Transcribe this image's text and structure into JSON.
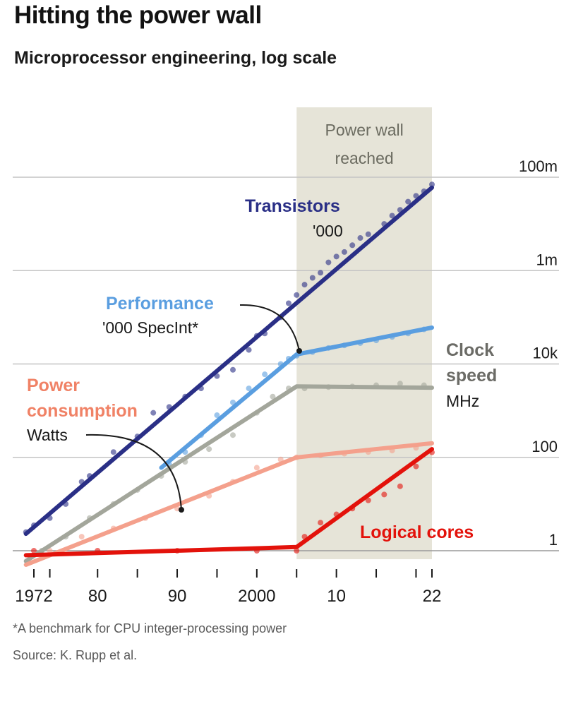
{
  "header": {
    "title": "Hitting the power wall",
    "subtitle": "Microprocessor engineering, log scale"
  },
  "footer": {
    "footnote": "*A benchmark for CPU integer-processing power",
    "source": "Source: K. Rupp et al."
  },
  "colors": {
    "transistors": "#2a2f86",
    "performance": "#5a9ee0",
    "clock": "#a3a69b",
    "power": "#f4a08c",
    "cores": "#e3120b",
    "shade": "#e6e4d8",
    "grid": "#c4c4c4"
  },
  "chart_data": {
    "type": "line",
    "title": "Hitting the power wall",
    "subtitle": "Microprocessor engineering, log scale",
    "y_scale": "log",
    "ylim": [
      0.3,
      500000000
    ],
    "xlim": [
      1971,
      2023
    ],
    "x_ticks": [
      1972,
      1974,
      1980,
      1985,
      1990,
      1995,
      2000,
      2005,
      2010,
      2015,
      2020,
      2022
    ],
    "x_tick_labels": [
      {
        "value": 1972,
        "label": "1972"
      },
      {
        "value": 1980,
        "label": "80"
      },
      {
        "value": 1990,
        "label": "90"
      },
      {
        "value": 2000,
        "label": "2000"
      },
      {
        "value": 2010,
        "label": "10"
      },
      {
        "value": 2022,
        "label": "22"
      }
    ],
    "y_ticks": [
      {
        "value": 1,
        "label": "1"
      },
      {
        "value": 100,
        "label": "100"
      },
      {
        "value": 10000,
        "label": "10k"
      },
      {
        "value": 1000000,
        "label": "1m"
      },
      {
        "value": 100000000,
        "label": "100m"
      }
    ],
    "grid": true,
    "shaded_region": {
      "x": [
        2005,
        2022
      ],
      "label_lines": [
        "Power wall",
        "reached"
      ]
    },
    "series": [
      {
        "key": "transistors",
        "name": "Transistors",
        "unit": "'000",
        "trend": [
          [
            1971,
            2.3
          ],
          [
            2022,
            60000000
          ]
        ],
        "points": [
          [
            1971,
            2.5
          ],
          [
            1972,
            3.5
          ],
          [
            1974,
            5
          ],
          [
            1976,
            10
          ],
          [
            1978,
            30
          ],
          [
            1979,
            40
          ],
          [
            1982,
            130
          ],
          [
            1985,
            280
          ],
          [
            1987,
            900
          ],
          [
            1989,
            1200
          ],
          [
            1991,
            2000
          ],
          [
            1993,
            3000
          ],
          [
            1995,
            5500
          ],
          [
            1997,
            7500
          ],
          [
            1999,
            20000
          ],
          [
            2000,
            40000
          ],
          [
            2001,
            45000
          ],
          [
            2003,
            100000
          ],
          [
            2004,
            200000
          ],
          [
            2005,
            300000
          ],
          [
            2006,
            500000
          ],
          [
            2007,
            700000
          ],
          [
            2008,
            900000
          ],
          [
            2009,
            1500000
          ],
          [
            2010,
            2000000
          ],
          [
            2011,
            2500000
          ],
          [
            2012,
            3500000
          ],
          [
            2013,
            5000000
          ],
          [
            2014,
            6000000
          ],
          [
            2016,
            10000000
          ],
          [
            2017,
            15000000
          ],
          [
            2018,
            20000000
          ],
          [
            2019,
            30000000
          ],
          [
            2020,
            40000000
          ],
          [
            2021,
            50000000
          ],
          [
            2022,
            70000000
          ]
        ]
      },
      {
        "key": "performance",
        "name": "Performance",
        "unit": "'000 SpecInt*",
        "trend": [
          [
            1988,
            60
          ],
          [
            2005,
            16000
          ],
          [
            2022,
            60000
          ]
        ],
        "points": [
          [
            1989,
            70
          ],
          [
            1991,
            130
          ],
          [
            1993,
            300
          ],
          [
            1995,
            800
          ],
          [
            1997,
            1500
          ],
          [
            1999,
            3000
          ],
          [
            2001,
            6000
          ],
          [
            2003,
            10000
          ],
          [
            2004,
            13000
          ],
          [
            2005,
            15000
          ],
          [
            2007,
            18000
          ],
          [
            2009,
            22000
          ],
          [
            2011,
            25000
          ],
          [
            2013,
            28000
          ],
          [
            2015,
            32000
          ],
          [
            2017,
            38000
          ],
          [
            2019,
            45000
          ],
          [
            2021,
            55000
          ]
        ]
      },
      {
        "key": "clock",
        "name": "Clock speed",
        "unit": "MHz",
        "trend": [
          [
            1971,
            0.6
          ],
          [
            2005,
            3300
          ],
          [
            2022,
            3100
          ]
        ],
        "points": [
          [
            1973,
            1
          ],
          [
            1976,
            2
          ],
          [
            1979,
            5
          ],
          [
            1982,
            10
          ],
          [
            1985,
            20
          ],
          [
            1988,
            40
          ],
          [
            1991,
            80
          ],
          [
            1994,
            150
          ],
          [
            1997,
            300
          ],
          [
            2000,
            900
          ],
          [
            2002,
            2000
          ],
          [
            2004,
            3000
          ],
          [
            2006,
            3000
          ],
          [
            2009,
            3200
          ],
          [
            2012,
            3300
          ],
          [
            2015,
            3500
          ],
          [
            2018,
            3800
          ],
          [
            2021,
            3500
          ]
        ]
      },
      {
        "key": "power",
        "name": "Power consumption",
        "unit": "Watts",
        "trend": [
          [
            1971,
            0.5
          ],
          [
            2005,
            100
          ],
          [
            2022,
            200
          ]
        ],
        "points": [
          [
            1974,
            1
          ],
          [
            1978,
            2
          ],
          [
            1982,
            3
          ],
          [
            1986,
            5
          ],
          [
            1990,
            8
          ],
          [
            1994,
            15
          ],
          [
            1997,
            30
          ],
          [
            2000,
            60
          ],
          [
            2003,
            90
          ],
          [
            2005,
            100
          ],
          [
            2008,
            110
          ],
          [
            2011,
            120
          ],
          [
            2014,
            130
          ],
          [
            2017,
            140
          ],
          [
            2020,
            160
          ]
        ]
      },
      {
        "key": "cores",
        "name": "Logical cores",
        "trend": [
          [
            1971,
            0.8
          ],
          [
            2005,
            1.2
          ],
          [
            2022,
            150
          ]
        ],
        "points": [
          [
            1972,
            1
          ],
          [
            1980,
            1
          ],
          [
            1990,
            1
          ],
          [
            2000,
            1
          ],
          [
            2005,
            1
          ],
          [
            2006,
            2
          ],
          [
            2008,
            4
          ],
          [
            2010,
            6
          ],
          [
            2012,
            8
          ],
          [
            2014,
            12
          ],
          [
            2016,
            16
          ],
          [
            2018,
            24
          ],
          [
            2020,
            64
          ],
          [
            2022,
            128
          ]
        ]
      }
    ]
  },
  "labels": {
    "transistors": {
      "name": "Transistors",
      "unit": "'000"
    },
    "performance": {
      "name": "Performance",
      "unit": "'000 SpecInt*"
    },
    "clock": {
      "line1": "Clock",
      "line2": "speed",
      "unit": "MHz"
    },
    "power": {
      "line1": "Power",
      "line2": "consumption",
      "unit": "Watts"
    },
    "cores": {
      "name": "Logical cores"
    }
  }
}
